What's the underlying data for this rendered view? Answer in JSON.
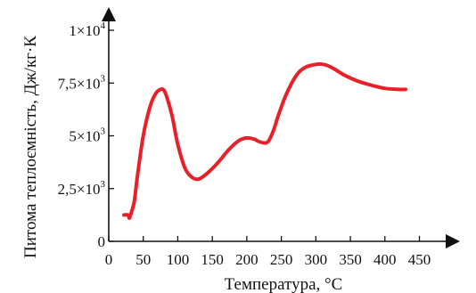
{
  "chart_data": {
    "type": "line",
    "xlabel": "Температура, °C",
    "ylabel": "Питома теплоємність, Дж/кг·К",
    "xlim": [
      0,
      470
    ],
    "ylim": [
      0,
      10000
    ],
    "x_ticks": [
      0,
      50,
      100,
      150,
      200,
      250,
      300,
      350,
      400,
      450
    ],
    "x_tick_labels": [
      "0",
      "50",
      "100",
      "150",
      "200",
      "250",
      "300",
      "350",
      "400",
      "450"
    ],
    "y_ticks": [
      0,
      2500,
      5000,
      7500,
      10000
    ],
    "y_tick_labels": [
      {
        "mantissa": "0",
        "exp": ""
      },
      {
        "mantissa": "2,5×10",
        "exp": "3"
      },
      {
        "mantissa": "5×10",
        "exp": "3"
      },
      {
        "mantissa": "7,5×10",
        "exp": "3"
      },
      {
        "mantissa": "1×10",
        "exp": "4"
      }
    ],
    "line_color": "#e8202a",
    "grid": false,
    "series": [
      {
        "x": [
          22,
          28,
          30,
          33,
          37,
          42,
          50,
          60,
          68,
          75,
          80,
          85,
          92,
          100,
          110,
          120,
          130,
          140,
          150,
          160,
          170,
          180,
          190,
          200,
          210,
          220,
          230,
          238,
          245,
          255,
          265,
          275,
          285,
          295,
          305,
          315,
          325,
          340,
          360,
          380,
          400,
          420,
          430
        ],
        "y": [
          1250,
          1250,
          1100,
          1400,
          1900,
          3200,
          5000,
          6400,
          7000,
          7200,
          7150,
          6750,
          5900,
          4600,
          3500,
          3050,
          2950,
          3150,
          3450,
          3800,
          4200,
          4550,
          4800,
          4900,
          4850,
          4700,
          4700,
          5200,
          5900,
          6800,
          7500,
          8000,
          8250,
          8350,
          8400,
          8350,
          8200,
          7900,
          7600,
          7400,
          7250,
          7200,
          7200
        ]
      }
    ]
  }
}
